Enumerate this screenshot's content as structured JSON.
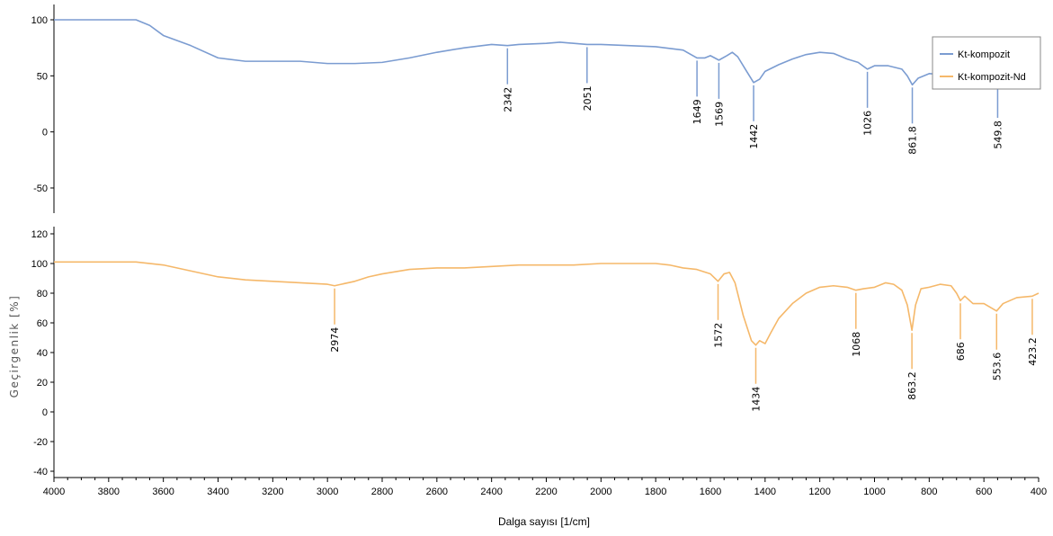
{
  "chart_data": {
    "type": "line",
    "xlabel": "Dalga sayısı [1/cm]",
    "ylabel": "Geçirgenlik [%]",
    "xlim": [
      4000,
      400
    ],
    "x_reversed": true,
    "x_ticks": [
      4000,
      3800,
      3600,
      3400,
      3200,
      3000,
      2800,
      2600,
      2400,
      2200,
      2000,
      1800,
      1600,
      1400,
      1200,
      1000,
      800,
      600,
      400
    ],
    "legend_position": "top-right",
    "panels": [
      {
        "ylim": [
          -60,
          110
        ],
        "y_ticks": [
          100,
          50,
          0,
          -50
        ],
        "series": [
          {
            "name": "Kt-kompozit",
            "color": "#7b9cd1",
            "points": [
              [
                4000,
                100
              ],
              [
                3700,
                100
              ],
              [
                3650,
                95
              ],
              [
                3600,
                86
              ],
              [
                3500,
                77
              ],
              [
                3400,
                66
              ],
              [
                3300,
                63
              ],
              [
                3200,
                63
              ],
              [
                3100,
                63
              ],
              [
                3000,
                61
              ],
              [
                2900,
                61
              ],
              [
                2800,
                62
              ],
              [
                2700,
                66
              ],
              [
                2600,
                71
              ],
              [
                2500,
                75
              ],
              [
                2400,
                78
              ],
              [
                2342,
                77
              ],
              [
                2300,
                78
              ],
              [
                2200,
                79
              ],
              [
                2150,
                80
              ],
              [
                2100,
                79
              ],
              [
                2051,
                78
              ],
              [
                2000,
                78
              ],
              [
                1900,
                77
              ],
              [
                1800,
                76
              ],
              [
                1700,
                73
              ],
              [
                1649,
                66
              ],
              [
                1620,
                66
              ],
              [
                1600,
                68
              ],
              [
                1569,
                64
              ],
              [
                1540,
                68
              ],
              [
                1520,
                71
              ],
              [
                1500,
                67
              ],
              [
                1470,
                55
              ],
              [
                1442,
                44
              ],
              [
                1420,
                47
              ],
              [
                1400,
                54
              ],
              [
                1350,
                60
              ],
              [
                1300,
                65
              ],
              [
                1250,
                69
              ],
              [
                1200,
                71
              ],
              [
                1150,
                70
              ],
              [
                1100,
                65
              ],
              [
                1060,
                62
              ],
              [
                1026,
                56
              ],
              [
                1000,
                59
              ],
              [
                950,
                59
              ],
              [
                900,
                56
              ],
              [
                880,
                50
              ],
              [
                861.8,
                42
              ],
              [
                840,
                48
              ],
              [
                800,
                52
              ],
              [
                700,
                50
              ],
              [
                600,
                48
              ],
              [
                549.8,
                47
              ],
              [
                500,
                48
              ],
              [
                400,
                49
              ]
            ]
          }
        ],
        "peak_labels": [
          {
            "x": 2342,
            "text": "2342"
          },
          {
            "x": 2051,
            "text": "2051"
          },
          {
            "x": 1649,
            "text": "1649"
          },
          {
            "x": 1569,
            "text": "1569"
          },
          {
            "x": 1442,
            "text": "1442"
          },
          {
            "x": 1026,
            "text": "1026"
          },
          {
            "x": 861.8,
            "text": "861.8"
          },
          {
            "x": 549.8,
            "text": "549.8"
          }
        ]
      },
      {
        "ylim": [
          -40,
          125
        ],
        "y_ticks": [
          120,
          100,
          80,
          60,
          40,
          20,
          0,
          -20,
          -40
        ],
        "series": [
          {
            "name": "Kt-kompozit-Nd",
            "color": "#f5b86a",
            "points": [
              [
                4000,
                101
              ],
              [
                3700,
                101
              ],
              [
                3600,
                99
              ],
              [
                3500,
                95
              ],
              [
                3400,
                91
              ],
              [
                3300,
                89
              ],
              [
                3200,
                88
              ],
              [
                3100,
                87
              ],
              [
                3000,
                86
              ],
              [
                2974,
                85
              ],
              [
                2950,
                86
              ],
              [
                2900,
                88
              ],
              [
                2850,
                91
              ],
              [
                2800,
                93
              ],
              [
                2700,
                96
              ],
              [
                2600,
                97
              ],
              [
                2500,
                97
              ],
              [
                2400,
                98
              ],
              [
                2300,
                99
              ],
              [
                2200,
                99
              ],
              [
                2100,
                99
              ],
              [
                2000,
                100
              ],
              [
                1900,
                100
              ],
              [
                1800,
                100
              ],
              [
                1750,
                99
              ],
              [
                1700,
                97
              ],
              [
                1650,
                96
              ],
              [
                1600,
                93
              ],
              [
                1572,
                88
              ],
              [
                1550,
                93
              ],
              [
                1530,
                94
              ],
              [
                1510,
                87
              ],
              [
                1480,
                65
              ],
              [
                1450,
                48
              ],
              [
                1434,
                45
              ],
              [
                1420,
                48
              ],
              [
                1400,
                46
              ],
              [
                1380,
                53
              ],
              [
                1350,
                63
              ],
              [
                1300,
                73
              ],
              [
                1250,
                80
              ],
              [
                1200,
                84
              ],
              [
                1150,
                85
              ],
              [
                1100,
                84
              ],
              [
                1068,
                82
              ],
              [
                1040,
                83
              ],
              [
                1000,
                84
              ],
              [
                960,
                87
              ],
              [
                930,
                86
              ],
              [
                900,
                82
              ],
              [
                880,
                72
              ],
              [
                863.2,
                55
              ],
              [
                850,
                72
              ],
              [
                830,
                83
              ],
              [
                800,
                84
              ],
              [
                760,
                86
              ],
              [
                720,
                85
              ],
              [
                700,
                80
              ],
              [
                686,
                75
              ],
              [
                670,
                78
              ],
              [
                640,
                73
              ],
              [
                600,
                73
              ],
              [
                553.6,
                68
              ],
              [
                530,
                73
              ],
              [
                480,
                77
              ],
              [
                423.2,
                78
              ],
              [
                400,
                80
              ]
            ]
          }
        ],
        "peak_labels": [
          {
            "x": 2974,
            "text": "2974"
          },
          {
            "x": 1572,
            "text": "1572"
          },
          {
            "x": 1434,
            "text": "1434"
          },
          {
            "x": 1068,
            "text": "1068"
          },
          {
            "x": 863.2,
            "text": "863.2"
          },
          {
            "x": 686,
            "text": "686"
          },
          {
            "x": 553.6,
            "text": "553.6"
          },
          {
            "x": 423.2,
            "text": "423.2"
          }
        ]
      }
    ]
  }
}
